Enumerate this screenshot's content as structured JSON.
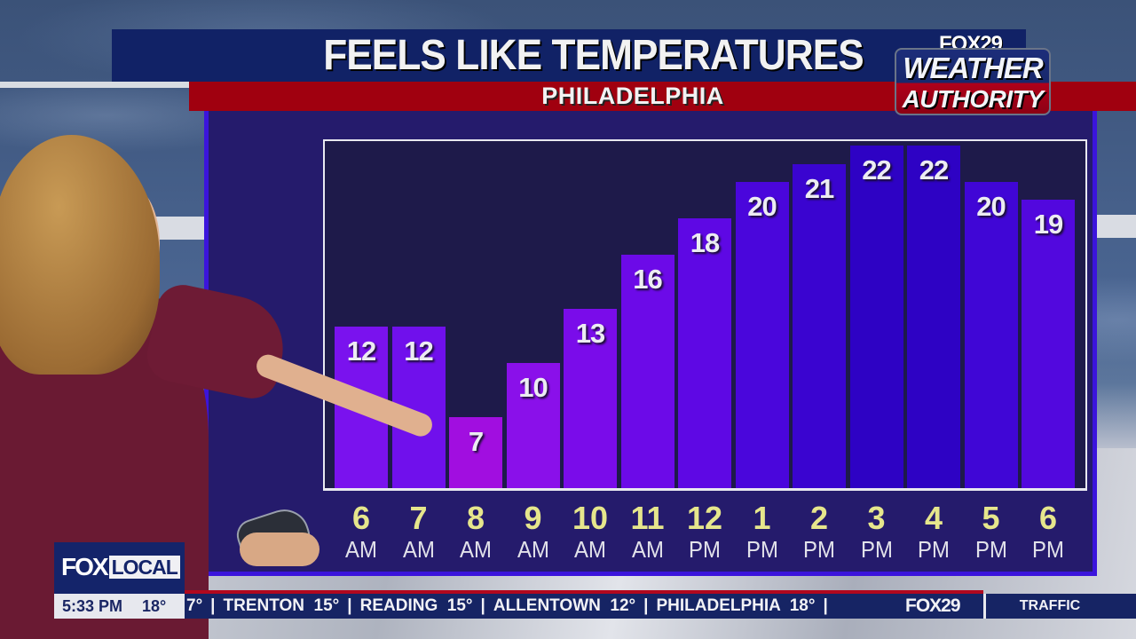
{
  "header": {
    "title": "FEELS LIKE TEMPERATURES",
    "location": "PHILADELPHIA"
  },
  "logo": {
    "top": "FOX29",
    "line1": "WEATHER",
    "line2": "AUTHORITY"
  },
  "chart_data": {
    "type": "bar",
    "title": "FEELS LIKE TEMPERATURES",
    "subtitle": "PHILADELPHIA",
    "categories": [
      "6 AM",
      "7 AM",
      "8 AM",
      "9 AM",
      "10 AM",
      "11 AM",
      "12 PM",
      "1 PM",
      "2 PM",
      "3 PM",
      "4 PM",
      "5 PM",
      "6 PM"
    ],
    "x_hours": [
      "6",
      "7",
      "8",
      "9",
      "10",
      "11",
      "12",
      "1",
      "2",
      "3",
      "4",
      "5",
      "6"
    ],
    "x_ampm": [
      "AM",
      "AM",
      "AM",
      "AM",
      "AM",
      "AM",
      "PM",
      "PM",
      "PM",
      "PM",
      "PM",
      "PM",
      "PM"
    ],
    "values": [
      12,
      12,
      7,
      10,
      13,
      16,
      18,
      20,
      21,
      22,
      22,
      20,
      19
    ],
    "bar_colors": [
      "#7a12ee",
      "#7010ec",
      "#a10ee0",
      "#8a10ea",
      "#7a0cea",
      "#6c0ae8",
      "#5e08e4",
      "#4a06dc",
      "#3a04d0",
      "#2e02c4",
      "#2e02c4",
      "#4006d6",
      "#5208de"
    ],
    "data_labels": true,
    "xlabel": "",
    "ylabel": "",
    "grid": false,
    "legend": null
  },
  "bug": {
    "fox": "FOX",
    "local": "LOCAL",
    "time": "5:33 PM",
    "temp": "18°"
  },
  "ticker": {
    "items": [
      {
        "text": "7°"
      },
      {
        "text": "TRENTON  15°"
      },
      {
        "text": "READING  15°"
      },
      {
        "text": "ALLENTOWN  12°"
      },
      {
        "text": "PHILADELPHIA  18°"
      }
    ],
    "separator": "|",
    "station": "FOX29",
    "section": "TRAFFIC"
  }
}
